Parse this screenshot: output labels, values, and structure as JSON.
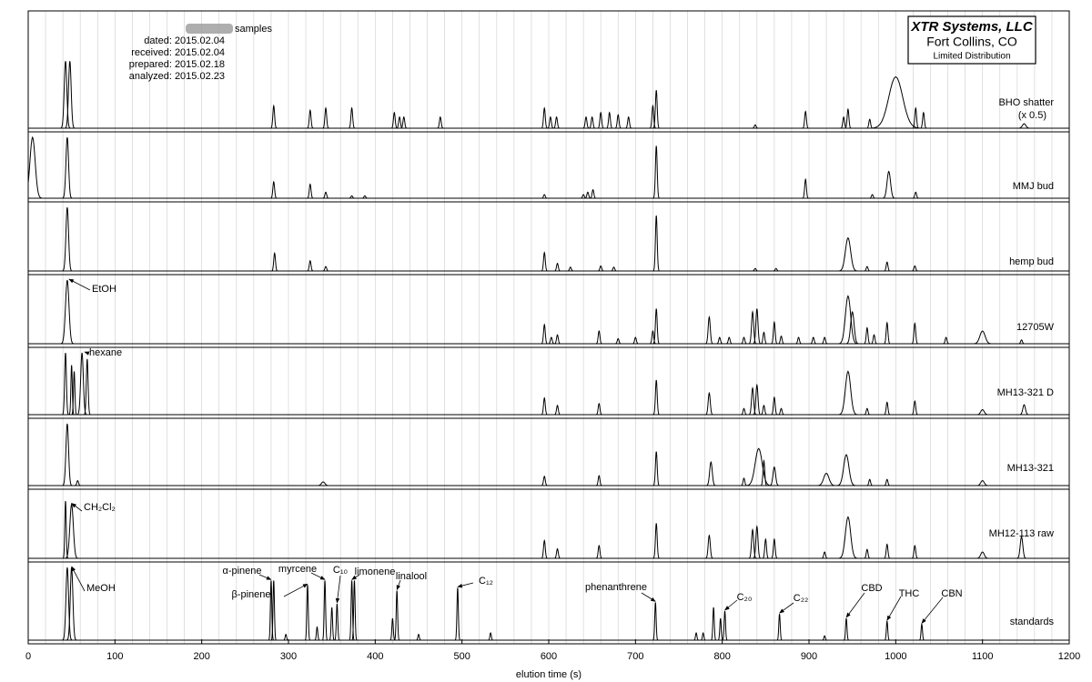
{
  "chart_data": {
    "type": "chromatogram",
    "title": "XTR Systems, LLC",
    "subtitle": "Fort Collins, CO",
    "note": "Limited Distribution",
    "header": {
      "samples": "samples",
      "lines": [
        "dated: 2015.02.04",
        "received: 2015.02.04",
        "prepared: 2015.02.18",
        "analyzed: 2015.02.23"
      ]
    },
    "xlabel": "elution time (s)",
    "xlim": [
      0,
      1200
    ],
    "xticks": [
      0,
      100,
      200,
      300,
      400,
      500,
      600,
      700,
      800,
      900,
      1000,
      1100,
      1200
    ],
    "xminorticks": [
      20,
      40,
      60,
      80,
      120,
      140,
      160,
      180,
      220,
      240,
      260,
      280,
      320,
      340,
      360,
      380,
      420,
      440,
      460,
      480,
      520,
      540,
      560,
      580,
      620,
      640,
      660,
      680,
      720,
      740,
      760,
      780,
      820,
      840,
      860,
      880,
      920,
      940,
      960,
      980,
      1020,
      1040,
      1060,
      1080,
      1120,
      1140,
      1160,
      1180
    ],
    "color": "#000000",
    "series": [
      {
        "name": "BHO shatter",
        "name_note": "(x 0.5)",
        "x": [
          43,
          48,
          283,
          325,
          343,
          373,
          422,
          428,
          433,
          475,
          595,
          602,
          609,
          643,
          650,
          660,
          670,
          680,
          692,
          720,
          724,
          838,
          896,
          940,
          945,
          970,
          1000,
          1023,
          1032,
          1148
        ],
        "values": [
          0.6,
          0.6,
          0.2,
          0.16,
          0.18,
          0.18,
          0.14,
          0.1,
          0.1,
          0.1,
          0.18,
          0.1,
          0.1,
          0.1,
          0.1,
          0.14,
          0.14,
          0.12,
          0.1,
          0.2,
          0.34,
          0.03,
          0.15,
          0.1,
          0.17,
          0.08,
          0.46,
          0.18,
          0.14,
          0.04
        ],
        "widths": [
          1.5,
          1.5,
          1,
          1,
          1,
          1,
          1,
          1,
          1,
          1,
          1,
          1,
          1,
          1,
          1,
          1,
          1,
          1,
          1,
          1,
          1,
          1,
          1,
          1,
          1,
          1,
          8,
          1,
          1,
          2
        ]
      },
      {
        "name": "MMJ bud",
        "x": [
          5,
          45,
          283,
          325,
          343,
          373,
          388,
          595,
          640,
          645,
          651,
          724,
          896,
          973,
          992,
          1023
        ],
        "values": [
          1,
          1,
          0.27,
          0.23,
          0.1,
          0.04,
          0.04,
          0.06,
          0.06,
          0.1,
          0.14,
          0.86,
          0.31,
          0.06,
          0.44,
          0.1
        ],
        "widths": [
          3,
          1.5,
          1,
          1,
          1,
          1,
          1,
          1,
          1,
          1,
          1,
          1,
          1,
          1,
          2,
          1
        ]
      },
      {
        "name": "hemp bud",
        "x": [
          45,
          284,
          325,
          343,
          595,
          610,
          625,
          660,
          675,
          724,
          838,
          862,
          945,
          967,
          990,
          1022
        ],
        "values": [
          1,
          0.28,
          0.16,
          0.07,
          0.29,
          0.12,
          0.06,
          0.08,
          0.06,
          0.87,
          0.04,
          0.04,
          0.52,
          0.07,
          0.14,
          0.08
        ],
        "widths": [
          1.5,
          1,
          1,
          1,
          1,
          1,
          1,
          1,
          1,
          1,
          1,
          1,
          3,
          1,
          1,
          1
        ]
      },
      {
        "name": "12705W",
        "x": [
          45,
          595,
          603,
          610,
          658,
          680,
          700,
          720,
          724,
          785,
          797,
          808,
          825,
          835,
          840,
          848,
          860,
          868,
          888,
          905,
          918,
          945,
          950,
          967,
          975,
          990,
          1022,
          1058,
          1100,
          1145
        ],
        "values": [
          1,
          0.3,
          0.1,
          0.14,
          0.2,
          0.08,
          0.1,
          0.2,
          0.55,
          0.42,
          0.1,
          0.1,
          0.1,
          0.5,
          0.55,
          0.18,
          0.34,
          0.12,
          0.1,
          0.1,
          0.1,
          0.75,
          0.5,
          0.25,
          0.14,
          0.33,
          0.32,
          0.1,
          0.2,
          0.06
        ],
        "widths": [
          2,
          1,
          1,
          1,
          1,
          1,
          1,
          1,
          1,
          1.2,
          1,
          1,
          1,
          1.2,
          1.2,
          1,
          1,
          1,
          1,
          1,
          1,
          3,
          2,
          1,
          1,
          1,
          1,
          1,
          3,
          1
        ]
      },
      {
        "name": "MH13-321 D",
        "x": [
          43,
          50,
          53,
          62,
          68,
          595,
          610,
          658,
          724,
          785,
          825,
          835,
          840,
          848,
          860,
          868,
          945,
          967,
          990,
          1022,
          1100,
          1148
        ],
        "values": [
          1,
          0.8,
          0.7,
          1,
          0.9,
          0.27,
          0.15,
          0.18,
          0.56,
          0.35,
          0.1,
          0.43,
          0.48,
          0.15,
          0.28,
          0.1,
          0.7,
          0.1,
          0.2,
          0.22,
          0.08,
          0.16
        ],
        "widths": [
          1,
          0.8,
          0.8,
          1.5,
          1,
          1,
          1,
          1,
          1,
          1.2,
          1,
          1.2,
          1.2,
          1,
          1,
          1,
          3,
          1,
          1,
          1,
          2,
          1.5
        ]
      },
      {
        "name": "MH13-321",
        "x": [
          45,
          57,
          340,
          595,
          658,
          724,
          787,
          825,
          842,
          848,
          860,
          920,
          943,
          970,
          990,
          1100
        ],
        "values": [
          1,
          0.08,
          0.06,
          0.15,
          0.16,
          0.55,
          0.38,
          0.12,
          0.6,
          0.4,
          0.3,
          0.2,
          0.5,
          0.1,
          0.1,
          0.08
        ],
        "widths": [
          1.5,
          1,
          2,
          1,
          1,
          1,
          1.5,
          1,
          4,
          1,
          1.5,
          3,
          3,
          1,
          1,
          2
        ]
      },
      {
        "name": "MH12-113 raw",
        "x": [
          43,
          50,
          595,
          610,
          658,
          724,
          785,
          835,
          840,
          850,
          860,
          918,
          945,
          967,
          990,
          1022,
          1100,
          1145
        ],
        "values": [
          0.9,
          0.85,
          0.28,
          0.15,
          0.2,
          0.55,
          0.36,
          0.45,
          0.5,
          0.3,
          0.3,
          0.1,
          0.65,
          0.14,
          0.22,
          0.2,
          0.1,
          0.34
        ],
        "widths": [
          0.8,
          2,
          1,
          1,
          1,
          1,
          1.2,
          1.2,
          1.2,
          1,
          1,
          1,
          3,
          1,
          1,
          1,
          2,
          1.5
        ]
      },
      {
        "name": "standards",
        "x": [
          45,
          50,
          280,
          283,
          297,
          322,
          333,
          342,
          350,
          356,
          373,
          376,
          420,
          425,
          450,
          495,
          533,
          723,
          770,
          778,
          790,
          798,
          803,
          866,
          918,
          943,
          990,
          1030
        ],
        "values": [
          1,
          1,
          0.82,
          0.82,
          0.08,
          0.76,
          0.18,
          0.82,
          0.45,
          0.5,
          0.82,
          0.82,
          0.3,
          0.68,
          0.08,
          0.72,
          0.1,
          0.52,
          0.1,
          0.1,
          0.45,
          0.3,
          0.4,
          0.36,
          0.06,
          0.3,
          0.26,
          0.22
        ],
        "widths": [
          1.5,
          1.5,
          0.8,
          0.8,
          0.8,
          0.8,
          0.8,
          0.8,
          0.8,
          0.8,
          0.8,
          0.8,
          0.8,
          0.8,
          0.8,
          0.8,
          0.8,
          0.8,
          0.8,
          0.8,
          0.8,
          0.8,
          0.8,
          0.8,
          0.8,
          0.8,
          0.8,
          0.8
        ]
      }
    ],
    "annotations": [
      {
        "text": "EtOH",
        "series": 3,
        "x": 47
      },
      {
        "text": "hexane",
        "series": 4,
        "x": 65
      },
      {
        "text": "CH₂Cl₂",
        "series": 6,
        "x": 50
      },
      {
        "text": "MeOH",
        "series": 7,
        "x": 50
      },
      {
        "text": "α-pinene",
        "series": 7,
        "x": 280
      },
      {
        "text": "β-pinene",
        "series": 7,
        "x": 322
      },
      {
        "text": "myrcene",
        "series": 7,
        "x": 342
      },
      {
        "text": "C₁₀",
        "series": 7,
        "x": 356
      },
      {
        "text": "limonene",
        "series": 7,
        "x": 373
      },
      {
        "text": "linalool",
        "series": 7,
        "x": 425
      },
      {
        "text": "C₁₂",
        "series": 7,
        "x": 495
      },
      {
        "text": "phenanthrene",
        "series": 7,
        "x": 723
      },
      {
        "text": "C₂₀",
        "series": 7,
        "x": 803
      },
      {
        "text": "C₂₂",
        "series": 7,
        "x": 866
      },
      {
        "text": "CBD",
        "series": 7,
        "x": 943
      },
      {
        "text": "THC",
        "series": 7,
        "x": 990
      },
      {
        "text": "CBN",
        "series": 7,
        "x": 1030
      }
    ]
  }
}
